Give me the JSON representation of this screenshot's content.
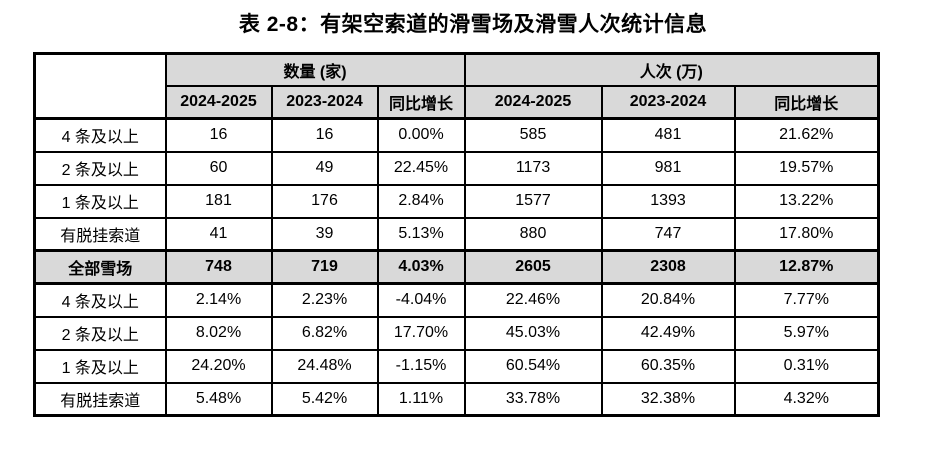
{
  "title": "表 2-8：有架空索道的滑雪场及滑雪人次统计信息",
  "colors": {
    "header_bg": "#d9d9d9",
    "border": "#000000",
    "text": "#000000",
    "page_bg": "#ffffff"
  },
  "table": {
    "groups": [
      "数量 (家)",
      "人次 (万)"
    ],
    "columns": [
      "2024-2025",
      "2023-2024",
      "同比增长",
      "2024-2025",
      "2023-2024",
      "同比增长"
    ],
    "rows": [
      {
        "label": "4 条及以上",
        "highlight": false,
        "values": [
          "16",
          "16",
          "0.00%",
          "585",
          "481",
          "21.62%"
        ]
      },
      {
        "label": "2 条及以上",
        "highlight": false,
        "values": [
          "60",
          "49",
          "22.45%",
          "1173",
          "981",
          "19.57%"
        ]
      },
      {
        "label": "1 条及以上",
        "highlight": false,
        "values": [
          "181",
          "176",
          "2.84%",
          "1577",
          "1393",
          "13.22%"
        ]
      },
      {
        "label": "有脱挂索道",
        "highlight": false,
        "values": [
          "41",
          "39",
          "5.13%",
          "880",
          "747",
          "17.80%"
        ]
      },
      {
        "label": "全部雪场",
        "highlight": true,
        "values": [
          "748",
          "719",
          "4.03%",
          "2605",
          "2308",
          "12.87%"
        ]
      },
      {
        "label": "4 条及以上",
        "highlight": false,
        "values": [
          "2.14%",
          "2.23%",
          "-4.04%",
          "22.46%",
          "20.84%",
          "7.77%"
        ]
      },
      {
        "label": "2 条及以上",
        "highlight": false,
        "values": [
          "8.02%",
          "6.82%",
          "17.70%",
          "45.03%",
          "42.49%",
          "5.97%"
        ]
      },
      {
        "label": "1 条及以上",
        "highlight": false,
        "values": [
          "24.20%",
          "24.48%",
          "-1.15%",
          "60.54%",
          "60.35%",
          "0.31%"
        ]
      },
      {
        "label": "有脱挂索道",
        "highlight": false,
        "values": [
          "5.48%",
          "5.42%",
          "1.11%",
          "33.78%",
          "32.38%",
          "4.32%"
        ]
      }
    ]
  }
}
